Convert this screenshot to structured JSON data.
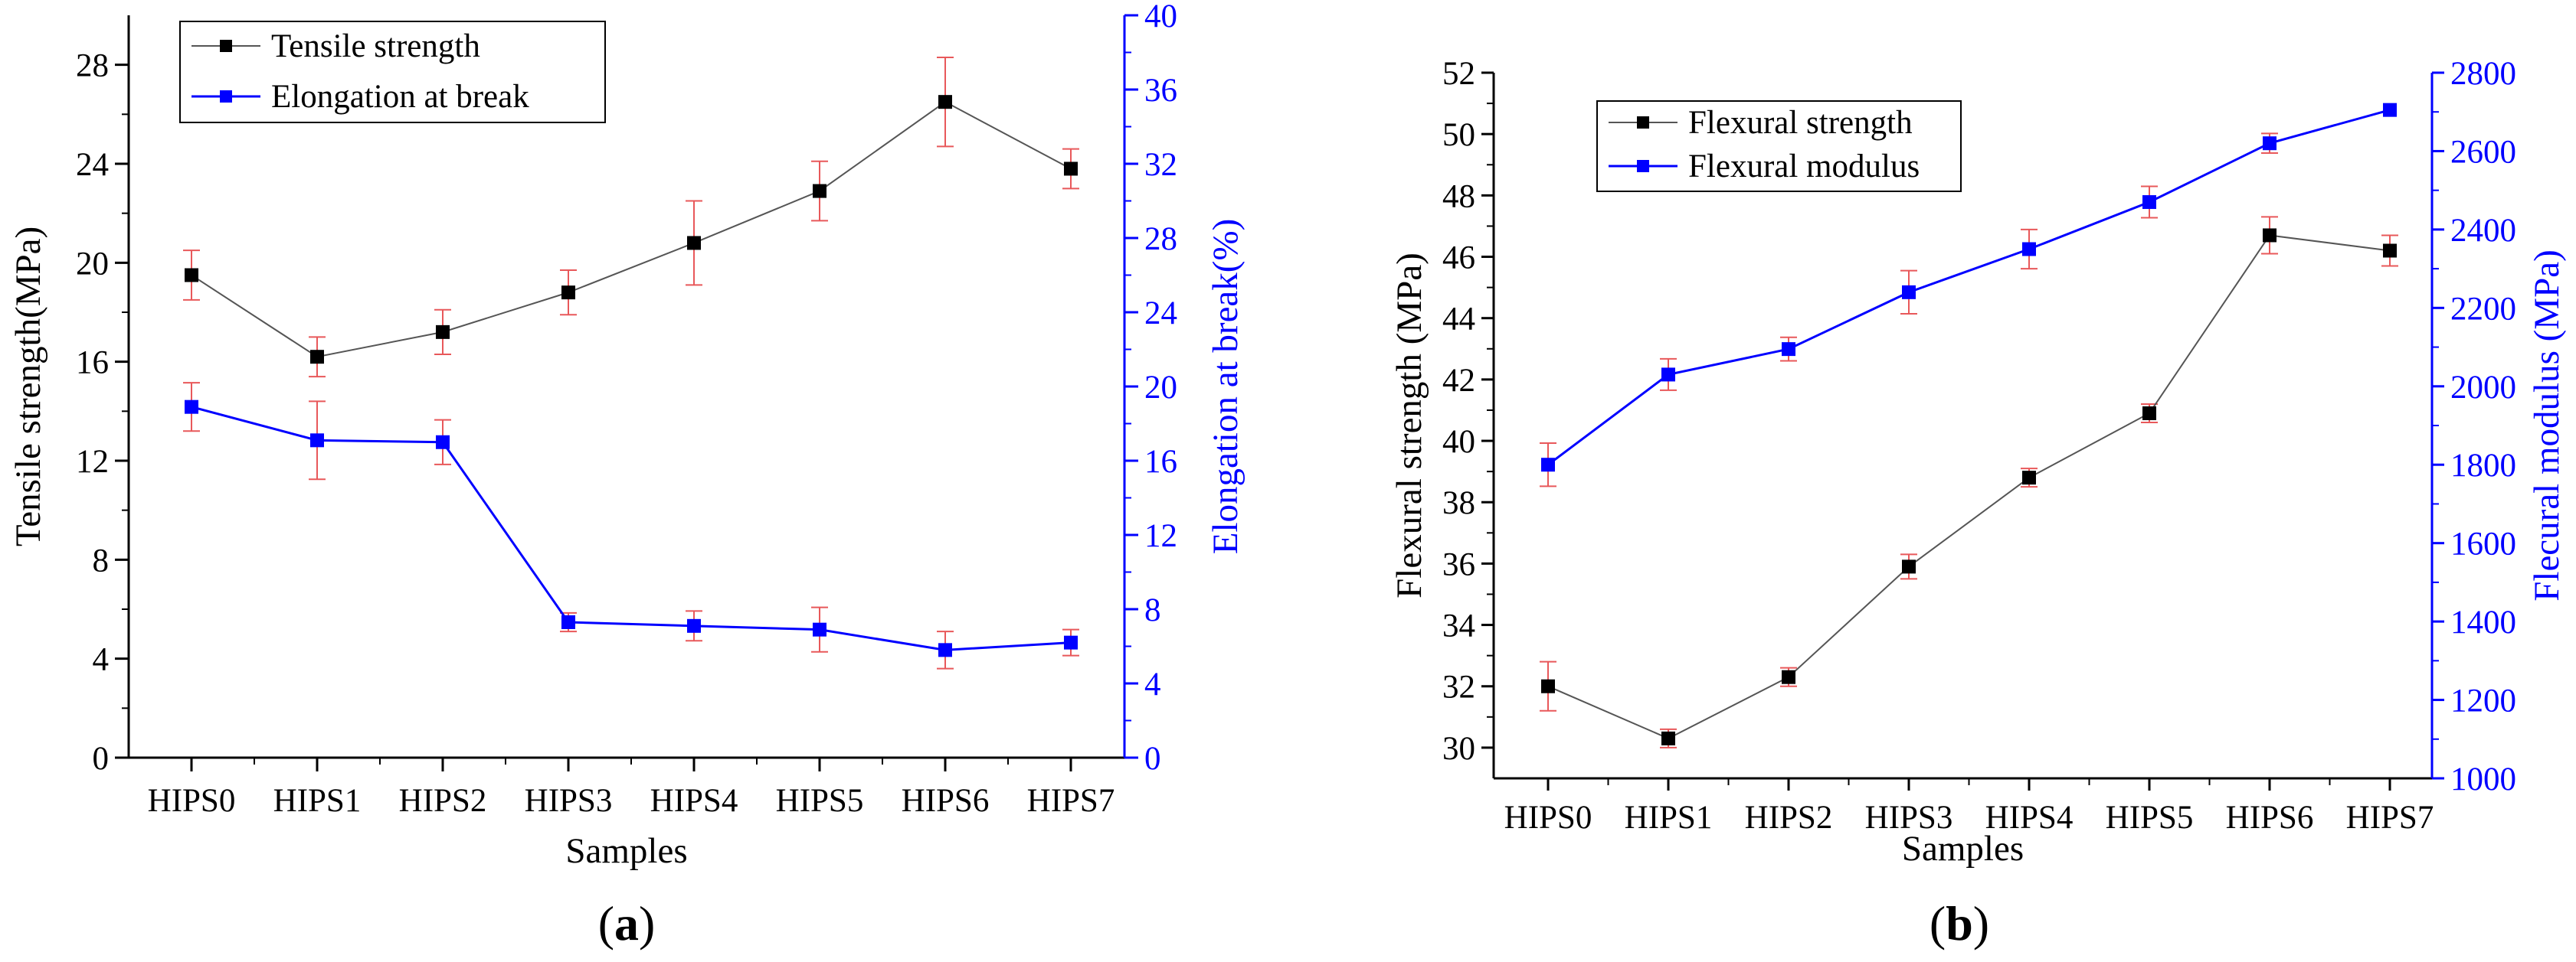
{
  "chart_data": [
    {
      "type": "line",
      "panel_label": "a",
      "categories": [
        "HIPS0",
        "HIPS1",
        "HIPS2",
        "HIPS3",
        "HIPS4",
        "HIPS5",
        "HIPS6",
        "HIPS7"
      ],
      "xlabel": "Samples",
      "ylabel": "Tensile strength(MPa)",
      "y2label": "Elongation at break(%)",
      "ylim": [
        0,
        30
      ],
      "y2lim": [
        0,
        40
      ],
      "yticks": [
        "0",
        "4",
        "8",
        "12",
        "16",
        "20",
        "24",
        "28"
      ],
      "y2ticks": [
        "0",
        "4",
        "8",
        "12",
        "16",
        "20",
        "24",
        "28",
        "32",
        "36",
        "40"
      ],
      "legend_position": "top-left",
      "series": [
        {
          "name": "Tensile strength",
          "axis": "left",
          "color": "#000000",
          "line_color": "#555555",
          "values": [
            19.5,
            16.2,
            17.2,
            18.8,
            20.8,
            22.9,
            26.5,
            23.8
          ],
          "errors": [
            1.0,
            0.8,
            0.9,
            0.9,
            1.7,
            1.2,
            1.8,
            0.8
          ]
        },
        {
          "name": "Elongation at break",
          "axis": "right",
          "color": "#0000ff",
          "line_color": "#0000ff",
          "values": [
            18.9,
            17.1,
            17.0,
            7.3,
            7.1,
            6.9,
            5.8,
            6.2
          ],
          "errors": [
            1.3,
            2.1,
            1.2,
            0.5,
            0.8,
            1.2,
            1.0,
            0.7
          ]
        }
      ]
    },
    {
      "type": "line",
      "panel_label": "b",
      "categories": [
        "HIPS0",
        "HIPS1",
        "HIPS2",
        "HIPS3",
        "HIPS4",
        "HIPS5",
        "HIPS6",
        "HIPS7"
      ],
      "xlabel": "Samples",
      "ylabel": "Flexural strength (MPa)",
      "y2label": "Flecural modulus (MPa)",
      "ylim": [
        29,
        52
      ],
      "y2lim": [
        1000,
        2800
      ],
      "yticks": [
        "30",
        "32",
        "34",
        "36",
        "38",
        "40",
        "42",
        "44",
        "46",
        "48",
        "50",
        "52"
      ],
      "y2ticks": [
        "1000",
        "1200",
        "1400",
        "1600",
        "1800",
        "2000",
        "2200",
        "2400",
        "2600",
        "2800"
      ],
      "legend_position": "top-left",
      "series": [
        {
          "name": "Flexural strength",
          "axis": "left",
          "color": "#000000",
          "line_color": "#555555",
          "values": [
            32.0,
            30.3,
            32.3,
            35.9,
            38.8,
            40.9,
            46.7,
            46.2
          ],
          "errors": [
            0.8,
            0.3,
            0.3,
            0.4,
            0.3,
            0.3,
            0.6,
            0.5
          ]
        },
        {
          "name": "Flexural modulus",
          "axis": "right",
          "color": "#0000ff",
          "line_color": "#0000ff",
          "values": [
            1800,
            2030,
            2095,
            2240,
            2350,
            2470,
            2620,
            2705
          ],
          "errors": [
            55,
            40,
            30,
            55,
            50,
            40,
            25,
            0
          ]
        }
      ]
    }
  ]
}
